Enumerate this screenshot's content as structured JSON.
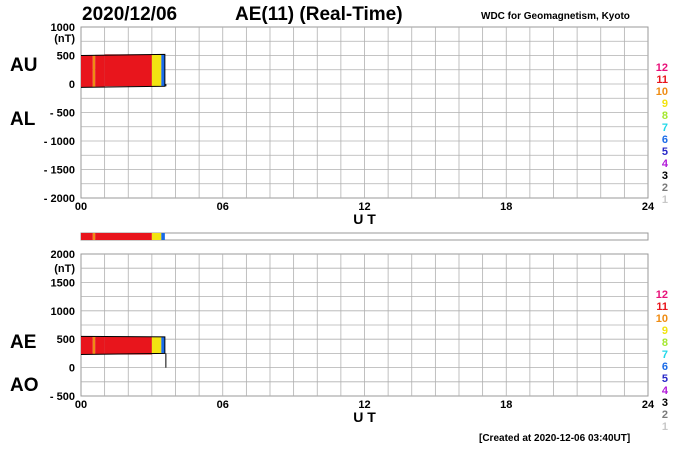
{
  "header": {
    "date": "2020/12/06",
    "title": "AE(11) (Real-Time)",
    "source": "WDC for Geomagnetism, Kyoto"
  },
  "footer": {
    "created": "[Created at 2020-12-06 03:40UT]"
  },
  "colors": {
    "level_12": "#e8127a",
    "level_11": "#e8151c",
    "level_10": "#ef8c13",
    "level_9": "#f2e411",
    "level_8": "#a5e82f",
    "level_7": "#22d8e8",
    "level_6": "#1a6be8",
    "level_5": "#2828c8",
    "level_4": "#b21ad9",
    "level_3": "#000000",
    "level_2": "#7a7a7a",
    "level_1": "#c8c8c8"
  },
  "chart_data": [
    {
      "type": "area",
      "panel": "AU/AL",
      "unit_label": "(nT)",
      "series_labels": [
        "AU",
        "AL"
      ],
      "ylim": [
        -2000,
        1000
      ],
      "yticks": [
        1000,
        500,
        0,
        -500,
        -1000,
        -1500,
        -2000
      ],
      "ytick_labels": [
        "1000",
        "500",
        "0",
        "- 500",
        "- 1000",
        "- 1500",
        "- 2000"
      ],
      "xlim": [
        0,
        24
      ],
      "xticks": [
        0,
        6,
        12,
        18,
        24
      ],
      "xtick_labels": [
        "00",
        "06",
        "12",
        "18",
        "24"
      ],
      "xlabel": "U T",
      "grid": true,
      "legend_levels": [
        "12",
        "11",
        "10",
        "9",
        "8",
        "7",
        "6",
        "5",
        "4",
        "3",
        "2",
        "1"
      ],
      "segments": [
        {
          "x0": 0.0,
          "x1": 0.5,
          "upper": 500,
          "lower": -60,
          "level": "11"
        },
        {
          "x0": 0.5,
          "x1": 0.6,
          "upper": 500,
          "lower": -60,
          "level": "10"
        },
        {
          "x0": 0.6,
          "x1": 1.0,
          "upper": 510,
          "lower": -50,
          "level": "11"
        },
        {
          "x0": 1.0,
          "x1": 3.0,
          "upper": 520,
          "lower": -40,
          "level": "11"
        },
        {
          "x0": 3.0,
          "x1": 3.4,
          "upper": 520,
          "lower": -40,
          "level": "9"
        },
        {
          "x0": 3.4,
          "x1": 3.55,
          "upper": 520,
          "lower": -40,
          "level": "6"
        }
      ]
    },
    {
      "type": "area",
      "panel": "AE/AO",
      "unit_label": "(nT)",
      "series_labels": [
        "AE",
        "AO"
      ],
      "ylim": [
        -500,
        2000
      ],
      "yticks": [
        2000,
        1500,
        1000,
        500,
        0,
        -500
      ],
      "ytick_labels": [
        "2000",
        "1500",
        "1000",
        "500",
        "0",
        "- 500"
      ],
      "xlim": [
        0,
        24
      ],
      "xticks": [
        0,
        6,
        12,
        18,
        24
      ],
      "xtick_labels": [
        "00",
        "06",
        "12",
        "18",
        "24"
      ],
      "xlabel": "U T",
      "grid": true,
      "legend_levels": [
        "12",
        "11",
        "10",
        "9",
        "8",
        "7",
        "6",
        "5",
        "4",
        "3",
        "2",
        "1"
      ],
      "segments": [
        {
          "x0": 0.0,
          "x1": 0.5,
          "upper": 550,
          "lower": 230,
          "level": "11"
        },
        {
          "x0": 0.5,
          "x1": 0.6,
          "upper": 550,
          "lower": 230,
          "level": "10"
        },
        {
          "x0": 0.6,
          "x1": 1.0,
          "upper": 540,
          "lower": 230,
          "level": "11"
        },
        {
          "x0": 1.0,
          "x1": 3.0,
          "upper": 540,
          "lower": 230,
          "level": "11"
        },
        {
          "x0": 3.0,
          "x1": 3.4,
          "upper": 540,
          "lower": 250,
          "level": "9"
        },
        {
          "x0": 3.4,
          "x1": 3.55,
          "upper": 540,
          "lower": 250,
          "level": "6"
        }
      ]
    }
  ],
  "activity_strip": [
    {
      "x0": 0.0,
      "x1": 0.5,
      "level": "11"
    },
    {
      "x0": 0.5,
      "x1": 0.6,
      "level": "10"
    },
    {
      "x0": 0.6,
      "x1": 3.0,
      "level": "11"
    },
    {
      "x0": 3.0,
      "x1": 3.4,
      "level": "9"
    },
    {
      "x0": 3.4,
      "x1": 3.55,
      "level": "6"
    }
  ]
}
